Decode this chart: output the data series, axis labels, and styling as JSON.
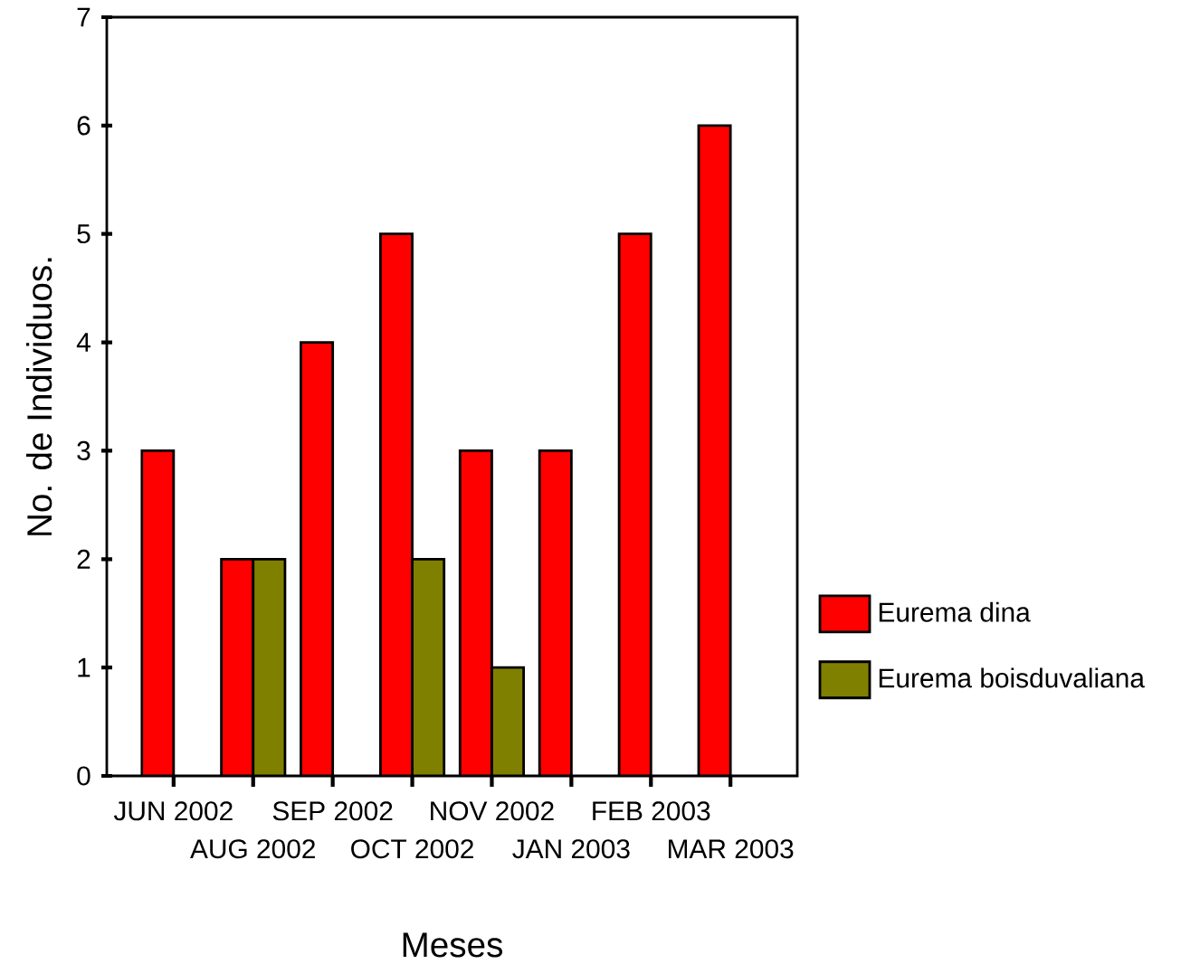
{
  "chart_data": {
    "type": "bar",
    "xlabel": "Meses",
    "ylabel": "No. de Individuos.",
    "categories": [
      "JUN 2002",
      "AUG 2002",
      "SEP 2002",
      "OCT 2002",
      "NOV 2002",
      "JAN 2003",
      "FEB 2003",
      "MAR 2003"
    ],
    "series": [
      {
        "name": "Eurema dina",
        "color": "#ff0000",
        "values": [
          3,
          2,
          4,
          5,
          3,
          3,
          5,
          6
        ]
      },
      {
        "name": "Eurema boisduvaliana",
        "color": "#808000",
        "values": [
          null,
          2,
          null,
          2,
          1,
          null,
          null,
          null
        ]
      }
    ],
    "ylim": [
      0,
      7
    ],
    "yticks": [
      0,
      1,
      2,
      3,
      4,
      5,
      6,
      7
    ],
    "legend": "right",
    "grid": false
  }
}
